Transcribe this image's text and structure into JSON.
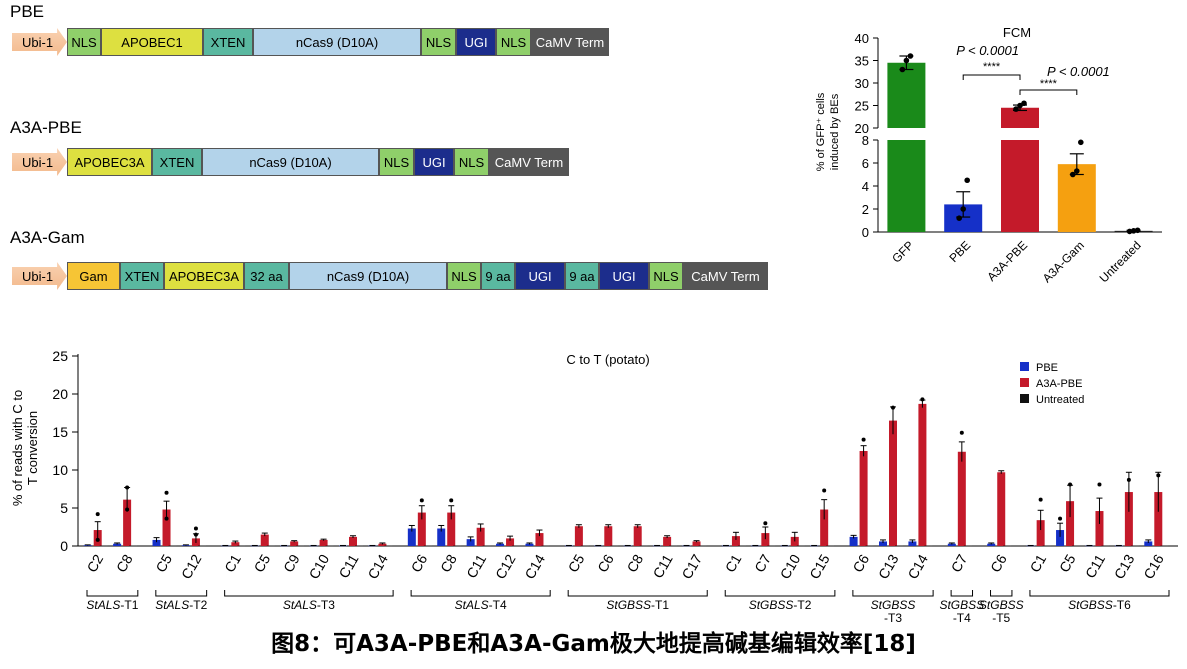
{
  "constructs": [
    {
      "name": "PBE",
      "segments": [
        {
          "label": "Ubi-1",
          "color": "#f7c9a5",
          "type": "promoter"
        },
        {
          "label": "NLS",
          "color": "#8fcf6a"
        },
        {
          "label": "APOBEC1",
          "color": "#dde040"
        },
        {
          "label": "XTEN",
          "color": "#5ab8a0"
        },
        {
          "label": "nCas9 (D10A)",
          "color": "#b3d3ea"
        },
        {
          "label": "NLS",
          "color": "#8fcf6a"
        },
        {
          "label": "UGI",
          "color": "#1c2d8c",
          "text_color": "#ffffff"
        },
        {
          "label": "NLS",
          "color": "#8fcf6a"
        },
        {
          "label": "CaMV Term",
          "color": "#555555",
          "text_color": "#ffffff"
        }
      ]
    },
    {
      "name": "A3A-PBE",
      "segments": [
        {
          "label": "Ubi-1",
          "color": "#f7c9a5",
          "type": "promoter"
        },
        {
          "label": "APOBEC3A",
          "color": "#dde040"
        },
        {
          "label": "XTEN",
          "color": "#5ab8a0"
        },
        {
          "label": "nCas9 (D10A)",
          "color": "#b3d3ea"
        },
        {
          "label": "NLS",
          "color": "#8fcf6a"
        },
        {
          "label": "UGI",
          "color": "#1c2d8c",
          "text_color": "#ffffff"
        },
        {
          "label": "NLS",
          "color": "#8fcf6a"
        },
        {
          "label": "CaMV Term",
          "color": "#555555",
          "text_color": "#ffffff"
        }
      ]
    },
    {
      "name": "A3A-Gam",
      "segments": [
        {
          "label": "Ubi-1",
          "color": "#f7c9a5",
          "type": "promoter"
        },
        {
          "label": "Gam",
          "color": "#f6c535"
        },
        {
          "label": "XTEN",
          "color": "#5ab8a0"
        },
        {
          "label": "APOBEC3A",
          "color": "#dde040"
        },
        {
          "label": "32 aa",
          "color": "#5ab8a0"
        },
        {
          "label": "nCas9 (D10A)",
          "color": "#b3d3ea"
        },
        {
          "label": "NLS",
          "color": "#8fcf6a"
        },
        {
          "label": "9 aa",
          "color": "#5ab8a0"
        },
        {
          "label": "UGI",
          "color": "#1c2d8c",
          "text_color": "#ffffff"
        },
        {
          "label": "9 aa",
          "color": "#5ab8a0"
        },
        {
          "label": "UGI",
          "color": "#1c2d8c",
          "text_color": "#ffffff"
        },
        {
          "label": "NLS",
          "color": "#8fcf6a"
        },
        {
          "label": "CaMV Term",
          "color": "#555555",
          "text_color": "#ffffff"
        }
      ]
    }
  ],
  "chart_data": [
    {
      "type": "bar",
      "title": "FCM",
      "ylabel": "% of GFP⁺ cells induced by BEs",
      "axis_break": [
        8,
        20
      ],
      "ylim": [
        0,
        40
      ],
      "yticks": [
        0,
        2,
        4,
        6,
        8,
        20,
        25,
        30,
        35,
        40
      ],
      "categories": [
        "GFP",
        "PBE",
        "A3A-PBE",
        "A3A-Gam",
        "Untreated"
      ],
      "values": [
        34.5,
        2.4,
        24.5,
        5.9,
        0.1
      ],
      "errors": [
        1.5,
        1.1,
        0.6,
        0.9,
        0.05
      ],
      "points": [
        [
          33,
          35,
          36
        ],
        [
          1.2,
          2.0,
          4.5
        ],
        [
          24.2,
          25.0,
          25.5
        ],
        [
          5.0,
          5.3,
          7.8
        ],
        [
          0.05,
          0.1,
          0.15
        ]
      ],
      "colors": [
        "#1a8a1a",
        "#1530c8",
        "#c41a2a",
        "#f5a010",
        "#222222"
      ],
      "significance": [
        {
          "p": "P < 0.0001",
          "stars": "****"
        },
        {
          "p": "P < 0.0001",
          "stars": "****"
        }
      ]
    },
    {
      "type": "bar",
      "title": "C to T (potato)",
      "ylabel": "% of reads with C to T conversion",
      "ylim": [
        0,
        25
      ],
      "yticks": [
        0,
        5,
        10,
        15,
        20,
        25
      ],
      "series": [
        {
          "name": "PBE",
          "color": "#1530c8"
        },
        {
          "name": "A3A-PBE",
          "color": "#c41a2a"
        },
        {
          "name": "Untreated",
          "color": "#111111"
        }
      ],
      "groups": [
        {
          "label": "StALS-T1",
          "gene": "StALS",
          "suffix": "-T1",
          "sites": [
            {
              "site": "C2",
              "values": [
                0.1,
                2.1,
                0.05
              ],
              "errors": [
                0.05,
                1.1,
                0.02
              ],
              "points": [
                [],
                [
                  0.8,
                  4.2
                ],
                []
              ]
            },
            {
              "site": "C8",
              "values": [
                0.3,
                6.1,
                0.05
              ],
              "errors": [
                0.1,
                1.6,
                0.02
              ],
              "points": [
                [],
                [
                  4.8,
                  7.7
                ],
                []
              ]
            }
          ]
        },
        {
          "label": "StALS-T2",
          "gene": "StALS",
          "suffix": "-T2",
          "sites": [
            {
              "site": "C5",
              "values": [
                0.8,
                4.8,
                0.05
              ],
              "errors": [
                0.3,
                1.1,
                0.02
              ],
              "points": [
                [],
                [
                  3.6,
                  7.0
                ],
                []
              ]
            },
            {
              "site": "C12",
              "values": [
                0.1,
                1.0,
                0.05
              ],
              "errors": [
                0.05,
                0.6,
                0.02
              ],
              "points": [
                [],
                [
                  1.5,
                  2.3
                ],
                []
              ]
            }
          ]
        },
        {
          "label": "StALS-T3",
          "gene": "StALS",
          "suffix": "-T3",
          "sites": [
            {
              "site": "C1",
              "values": [
                0.05,
                0.5,
                0.05
              ],
              "errors": [
                0.02,
                0.15,
                0.02
              ],
              "points": [
                [],
                [],
                []
              ]
            },
            {
              "site": "C5",
              "values": [
                0.05,
                1.5,
                0.05
              ],
              "errors": [
                0.02,
                0.2,
                0.02
              ],
              "points": [
                [],
                [],
                []
              ]
            },
            {
              "site": "C9",
              "values": [
                0.05,
                0.6,
                0.05
              ],
              "errors": [
                0.02,
                0.1,
                0.02
              ],
              "points": [
                [],
                [],
                []
              ]
            },
            {
              "site": "C10",
              "values": [
                0.05,
                0.8,
                0.05
              ],
              "errors": [
                0.02,
                0.1,
                0.02
              ],
              "points": [
                [],
                [],
                []
              ]
            },
            {
              "site": "C11",
              "values": [
                0.05,
                1.2,
                0.05
              ],
              "errors": [
                0.02,
                0.15,
                0.02
              ],
              "points": [
                [],
                [],
                []
              ]
            },
            {
              "site": "C14",
              "values": [
                0.05,
                0.3,
                0.05
              ],
              "errors": [
                0.02,
                0.1,
                0.02
              ],
              "points": [
                [],
                [],
                []
              ]
            }
          ]
        },
        {
          "label": "StALS-T4",
          "gene": "StALS",
          "suffix": "-T4",
          "sites": [
            {
              "site": "C6",
              "values": [
                2.3,
                4.4,
                0.05
              ],
              "errors": [
                0.4,
                0.9,
                0.02
              ],
              "points": [
                [],
                [
                  6.0
                ],
                []
              ]
            },
            {
              "site": "C8",
              "values": [
                2.3,
                4.4,
                0.05
              ],
              "errors": [
                0.4,
                0.9,
                0.02
              ],
              "points": [
                [],
                [
                  6.0
                ],
                []
              ]
            },
            {
              "site": "C11",
              "values": [
                0.9,
                2.4,
                0.05
              ],
              "errors": [
                0.3,
                0.5,
                0.02
              ],
              "points": [
                [],
                [],
                []
              ]
            },
            {
              "site": "C12",
              "values": [
                0.3,
                1.0,
                0.05
              ],
              "errors": [
                0.1,
                0.3,
                0.02
              ],
              "points": [
                [],
                [],
                []
              ]
            },
            {
              "site": "C14",
              "values": [
                0.3,
                1.7,
                0.05
              ],
              "errors": [
                0.1,
                0.4,
                0.02
              ],
              "points": [
                [],
                [],
                []
              ]
            }
          ]
        },
        {
          "label": "StGBSS-T1",
          "gene": "StGBSS",
          "suffix": "-T1",
          "sites": [
            {
              "site": "C5",
              "values": [
                0.05,
                2.6,
                0.05
              ],
              "errors": [
                0.02,
                0.2,
                0.02
              ],
              "points": [
                [],
                [],
                []
              ]
            },
            {
              "site": "C6",
              "values": [
                0.05,
                2.6,
                0.05
              ],
              "errors": [
                0.02,
                0.2,
                0.02
              ],
              "points": [
                [],
                [],
                []
              ]
            },
            {
              "site": "C8",
              "values": [
                0.05,
                2.6,
                0.05
              ],
              "errors": [
                0.02,
                0.2,
                0.02
              ],
              "points": [
                [],
                [],
                []
              ]
            },
            {
              "site": "C11",
              "values": [
                0.05,
                1.2,
                0.05
              ],
              "errors": [
                0.02,
                0.15,
                0.02
              ],
              "points": [
                [],
                [],
                []
              ]
            },
            {
              "site": "C17",
              "values": [
                0.05,
                0.6,
                0.05
              ],
              "errors": [
                0.02,
                0.1,
                0.02
              ],
              "points": [
                [],
                [],
                []
              ]
            }
          ]
        },
        {
          "label": "StGBSS-T2",
          "gene": "StGBSS",
          "suffix": "-T2",
          "sites": [
            {
              "site": "C1",
              "values": [
                0.05,
                1.3,
                0.05
              ],
              "errors": [
                0.02,
                0.5,
                0.02
              ],
              "points": [
                [],
                [],
                []
              ]
            },
            {
              "site": "C7",
              "values": [
                0.05,
                1.7,
                0.05
              ],
              "errors": [
                0.02,
                0.8,
                0.02
              ],
              "points": [
                [],
                [
                  3.0
                ],
                []
              ]
            },
            {
              "site": "C10",
              "values": [
                0.05,
                1.2,
                0.05
              ],
              "errors": [
                0.02,
                0.6,
                0.02
              ],
              "points": [
                [],
                [],
                []
              ]
            },
            {
              "site": "C15",
              "values": [
                0.05,
                4.8,
                0.05
              ],
              "errors": [
                0.02,
                1.3,
                0.02
              ],
              "points": [
                [],
                [
                  7.3
                ],
                []
              ]
            }
          ]
        },
        {
          "label": "StGBSS-T3",
          "gene": "StGBSS",
          "suffix": "-T3",
          "multiline": true,
          "sites": [
            {
              "site": "C6",
              "values": [
                1.2,
                12.5,
                0.05
              ],
              "errors": [
                0.2,
                0.7,
                0.02
              ],
              "points": [
                [],
                [
                  14.0
                ],
                []
              ]
            },
            {
              "site": "C13",
              "values": [
                0.6,
                16.5,
                0.05
              ],
              "errors": [
                0.2,
                1.8,
                0.02
              ],
              "points": [
                [],
                [
                  18.2
                ],
                []
              ]
            },
            {
              "site": "C14",
              "values": [
                0.6,
                18.7,
                0.05
              ],
              "errors": [
                0.2,
                0.5,
                0.02
              ],
              "points": [
                [],
                [
                  19.3
                ],
                []
              ]
            }
          ]
        },
        {
          "label": "StGBSS-T4",
          "gene": "StGBSS",
          "suffix": "-T4",
          "multiline": true,
          "sites": [
            {
              "site": "C7",
              "values": [
                0.3,
                12.4,
                0.05
              ],
              "errors": [
                0.1,
                1.3,
                0.02
              ],
              "points": [
                [],
                [
                  14.9
                ],
                []
              ]
            }
          ]
        },
        {
          "label": "StGBSS-T5",
          "gene": "StGBSS",
          "suffix": "-T5",
          "multiline": true,
          "sites": [
            {
              "site": "C6",
              "values": [
                0.3,
                9.7,
                0.05
              ],
              "errors": [
                0.1,
                0.2,
                0.02
              ],
              "points": [
                [],
                [],
                []
              ]
            }
          ]
        },
        {
          "label": "StGBSS-T6",
          "gene": "StGBSS",
          "suffix": "-T6",
          "sites": [
            {
              "site": "C1",
              "values": [
                0.05,
                3.4,
                0.05
              ],
              "errors": [
                0.02,
                1.3,
                0.02
              ],
              "points": [
                [],
                [
                  6.1
                ],
                []
              ]
            },
            {
              "site": "C5",
              "values": [
                2.1,
                5.9,
                0.05
              ],
              "errors": [
                0.9,
                2.1,
                0.02
              ],
              "points": [
                [
                  3.6
                ],
                [
                  8.1
                ],
                []
              ]
            },
            {
              "site": "C11",
              "values": [
                0.05,
                4.6,
                0.05
              ],
              "errors": [
                0.02,
                1.7,
                0.02
              ],
              "points": [
                [],
                [
                  8.1
                ],
                []
              ]
            },
            {
              "site": "C13",
              "values": [
                0.05,
                7.1,
                0.05
              ],
              "errors": [
                0.02,
                2.6,
                0.02
              ],
              "points": [
                [],
                [
                  8.7
                ],
                []
              ]
            },
            {
              "site": "C16",
              "values": [
                0.6,
                7.1,
                0.05
              ],
              "errors": [
                0.2,
                2.6,
                0.02
              ],
              "points": [
                [],
                [
                  9.3
                ],
                []
              ]
            }
          ]
        }
      ]
    }
  ],
  "caption": "图8：可A3A-PBE和A3A-Gam极大地提高碱基编辑效率[18]"
}
